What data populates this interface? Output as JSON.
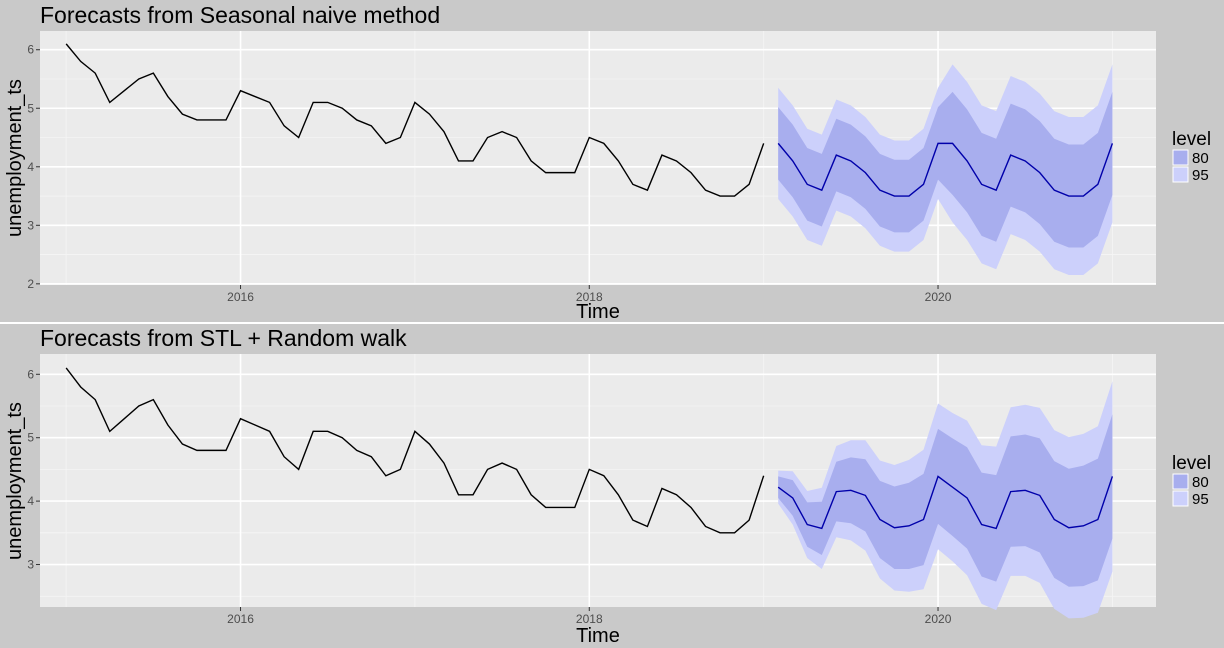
{
  "chart_data": [
    {
      "type": "line",
      "title": "Forecasts from Seasonal naive method",
      "xlabel": "Time",
      "ylabel": "unemployment_ts",
      "xlim": [
        2014.85,
        2021.25
      ],
      "ylim": [
        1.98,
        6.32
      ],
      "xticks": [
        2016,
        2018,
        2020
      ],
      "xtick_labels": [
        "2016",
        "2018",
        "2020"
      ],
      "yticks": [
        2,
        3,
        4,
        5,
        6
      ],
      "ytick_labels": [
        "2",
        "3",
        "4",
        "5",
        "6"
      ],
      "grid": true,
      "legend": {
        "title": "level",
        "position": "right",
        "entries": [
          "80",
          "95"
        ]
      },
      "colors": {
        "history": "#000000",
        "forecast": "#0000aa",
        "band80": "#a8aeee",
        "band95": "#ccd0fb"
      },
      "history": {
        "start": 2015.0,
        "step": 0.0833333,
        "values": [
          6.1,
          5.8,
          5.6,
          5.1,
          5.3,
          5.5,
          5.6,
          5.2,
          4.9,
          4.8,
          4.8,
          4.8,
          5.3,
          5.2,
          5.1,
          4.7,
          4.5,
          5.1,
          5.1,
          5.0,
          4.8,
          4.7,
          4.4,
          4.5,
          5.1,
          4.9,
          4.6,
          4.1,
          4.1,
          4.5,
          4.6,
          4.5,
          4.1,
          3.9,
          3.9,
          3.9,
          4.5,
          4.4,
          4.1,
          3.7,
          3.6,
          4.2,
          4.1,
          3.9,
          3.6,
          3.5,
          3.5,
          3.7,
          4.4
        ]
      },
      "forecast": {
        "start": 2019.0833333,
        "step": 0.0833333,
        "mean": [
          4.4,
          4.1,
          3.7,
          3.6,
          4.2,
          4.1,
          3.9,
          3.6,
          3.5,
          3.5,
          3.7,
          4.4,
          4.4,
          4.1,
          3.7,
          3.6,
          4.2,
          4.1,
          3.9,
          3.6,
          3.5,
          3.5,
          3.7,
          4.4
        ],
        "lo80": [
          3.78,
          3.48,
          3.08,
          2.98,
          3.58,
          3.48,
          3.28,
          2.98,
          2.88,
          2.88,
          3.08,
          3.78,
          3.52,
          3.22,
          2.82,
          2.72,
          3.32,
          3.22,
          3.02,
          2.72,
          2.62,
          2.62,
          2.82,
          3.52
        ],
        "hi80": [
          5.02,
          4.72,
          4.32,
          4.22,
          4.82,
          4.72,
          4.52,
          4.22,
          4.12,
          4.12,
          4.32,
          5.02,
          5.28,
          4.98,
          4.58,
          4.48,
          5.08,
          4.98,
          4.78,
          4.48,
          4.38,
          4.38,
          4.58,
          5.28
        ],
        "lo95": [
          3.45,
          3.15,
          2.75,
          2.65,
          3.25,
          3.15,
          2.95,
          2.65,
          2.55,
          2.55,
          2.75,
          3.45,
          3.05,
          2.75,
          2.35,
          2.25,
          2.85,
          2.75,
          2.55,
          2.25,
          2.15,
          2.15,
          2.35,
          3.05
        ],
        "hi95": [
          5.35,
          5.05,
          4.65,
          4.55,
          5.15,
          5.05,
          4.85,
          4.55,
          4.45,
          4.45,
          4.65,
          5.35,
          5.75,
          5.45,
          5.05,
          4.95,
          5.55,
          5.45,
          5.25,
          4.95,
          4.85,
          4.85,
          5.05,
          5.75
        ]
      }
    },
    {
      "type": "line",
      "title": "Forecasts from STL +  Random walk",
      "xlabel": "Time",
      "ylabel": "unemployment_ts",
      "xlim": [
        2014.85,
        2021.25
      ],
      "ylim": [
        2.33,
        6.32
      ],
      "xticks": [
        2016,
        2018,
        2020
      ],
      "xtick_labels": [
        "2016",
        "2018",
        "2020"
      ],
      "yticks": [
        3,
        4,
        5,
        6
      ],
      "ytick_labels": [
        "3",
        "4",
        "5",
        "6"
      ],
      "grid": true,
      "legend": {
        "title": "level",
        "position": "right",
        "entries": [
          "80",
          "95"
        ]
      },
      "colors": {
        "history": "#000000",
        "forecast": "#0000aa",
        "band80": "#a8aeee",
        "band95": "#ccd0fb"
      },
      "history": {
        "start": 2015.0,
        "step": 0.0833333,
        "values": [
          6.1,
          5.8,
          5.6,
          5.1,
          5.3,
          5.5,
          5.6,
          5.2,
          4.9,
          4.8,
          4.8,
          4.8,
          5.3,
          5.2,
          5.1,
          4.7,
          4.5,
          5.1,
          5.1,
          5.0,
          4.8,
          4.7,
          4.4,
          4.5,
          5.1,
          4.9,
          4.6,
          4.1,
          4.1,
          4.5,
          4.6,
          4.5,
          4.1,
          3.9,
          3.9,
          3.9,
          4.5,
          4.4,
          4.1,
          3.7,
          3.6,
          4.2,
          4.1,
          3.9,
          3.6,
          3.5,
          3.5,
          3.7,
          4.4
        ]
      },
      "forecast": {
        "start": 2019.0833333,
        "step": 0.0833333,
        "mean": [
          4.22,
          4.05,
          3.63,
          3.57,
          4.15,
          4.17,
          4.09,
          3.71,
          3.58,
          3.61,
          3.71,
          4.39,
          4.22,
          4.05,
          3.63,
          3.57,
          4.15,
          4.17,
          4.09,
          3.71,
          3.58,
          3.61,
          3.71,
          4.39
        ],
        "lo80": [
          4.05,
          3.77,
          3.28,
          3.15,
          3.68,
          3.65,
          3.52,
          3.1,
          2.93,
          2.93,
          2.99,
          3.64,
          3.45,
          3.25,
          2.81,
          2.73,
          3.28,
          3.29,
          3.19,
          2.79,
          2.65,
          2.66,
          2.75,
          3.41
        ],
        "hi80": [
          4.39,
          4.33,
          3.98,
          3.99,
          4.62,
          4.69,
          4.66,
          4.32,
          4.23,
          4.29,
          4.43,
          5.14,
          4.99,
          4.85,
          4.45,
          4.41,
          5.02,
          5.05,
          4.99,
          4.63,
          4.51,
          4.56,
          4.67,
          5.37
        ],
        "lo95": [
          3.96,
          3.63,
          3.1,
          2.93,
          3.43,
          3.38,
          3.22,
          2.78,
          2.59,
          2.57,
          2.61,
          3.24,
          3.05,
          2.83,
          2.38,
          2.28,
          2.82,
          2.82,
          2.71,
          2.3,
          2.15,
          2.16,
          2.24,
          2.89
        ],
        "hi95": [
          4.48,
          4.47,
          4.16,
          4.21,
          4.87,
          4.96,
          4.96,
          4.64,
          4.57,
          4.65,
          4.81,
          5.54,
          5.39,
          5.27,
          4.88,
          4.86,
          5.48,
          5.52,
          5.47,
          5.12,
          5.01,
          5.06,
          5.18,
          5.89
        ]
      }
    }
  ]
}
